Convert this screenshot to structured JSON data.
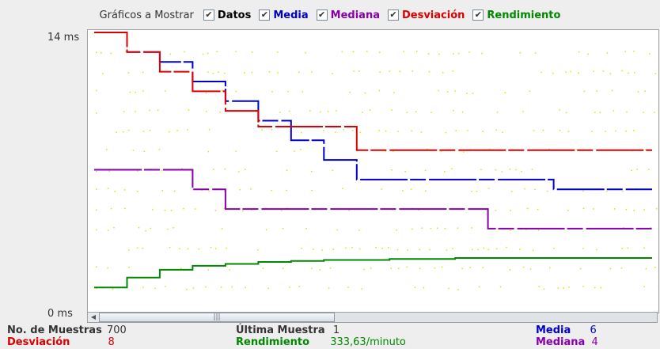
{
  "toolbar": {
    "label": "Gráficos a Mostrar",
    "check_glyph": "✔",
    "items": [
      {
        "label": "Datos",
        "color": "#000000",
        "checked": true
      },
      {
        "label": "Media",
        "color": "#0000cc",
        "checked": true
      },
      {
        "label": "Mediana",
        "color": "#8800aa",
        "checked": true
      },
      {
        "label": "Desviación",
        "color": "#dd0000",
        "checked": true
      },
      {
        "label": "Rendimiento",
        "color": "#008800",
        "checked": true
      }
    ]
  },
  "axis": {
    "top_label": "14 ms",
    "bottom_label": "0 ms"
  },
  "chart_data": {
    "type": "line",
    "ylim": [
      0,
      14
    ],
    "y_unit": "ms",
    "series": [
      {
        "name": "Media",
        "color": "#0000cc",
        "values": [
          14,
          13,
          12.5,
          11.5,
          10.5,
          9.5,
          8.5,
          7.5,
          6.5,
          6.5,
          6.5,
          6.5,
          6.5,
          6.5,
          6,
          6,
          6,
          6
        ]
      },
      {
        "name": "Mediana",
        "color": "#8800aa",
        "values": [
          7,
          7,
          7,
          6,
          5,
          5,
          5,
          5,
          5,
          5,
          5,
          5,
          4,
          4,
          4,
          4,
          4,
          4
        ]
      },
      {
        "name": "Desviación",
        "color": "#dd0000",
        "values": [
          14,
          13,
          12,
          11,
          10,
          9.2,
          9.2,
          9.2,
          8,
          8,
          8,
          8,
          8,
          8,
          8,
          8,
          8,
          8
        ]
      },
      {
        "name": "Rendimiento",
        "color": "#008800",
        "values": [
          1,
          1.5,
          1.9,
          2.1,
          2.2,
          2.3,
          2.35,
          2.4,
          2.4,
          2.45,
          2.45,
          2.5,
          2.5,
          2.5,
          2.5,
          2.5,
          2.5,
          2.5
        ]
      }
    ]
  },
  "stats": {
    "samples_label": "No. de Muestras",
    "samples_value": "700",
    "last_label": "Última Muestra",
    "last_value": "1",
    "mean_label": "Media",
    "mean_value": "6",
    "dev_label": "Desviación",
    "dev_value": "8",
    "throughput_label": "Rendimiento",
    "throughput_value": "333,63/minuto",
    "median_label": "Mediana",
    "median_value": "4"
  },
  "colors": {
    "blue": "#0000cc",
    "purple": "#8800aa",
    "red": "#dd0000",
    "green": "#008800",
    "yellow": "#e0e000"
  }
}
